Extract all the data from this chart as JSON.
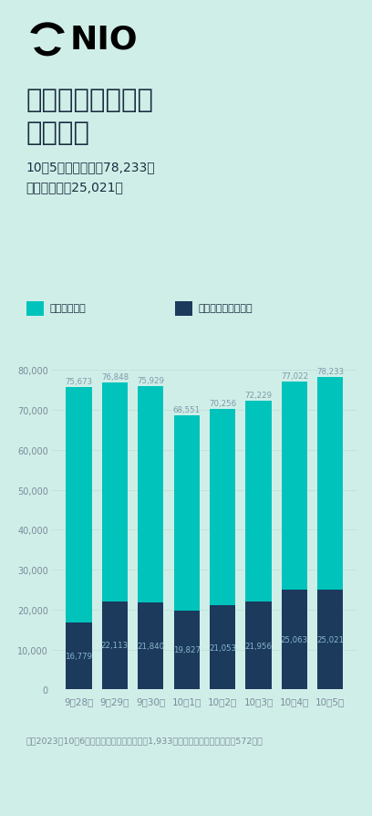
{
  "title_line1": "双节假期换电单量",
  "title_line2": "连创新高",
  "subtitle_line1": "10月5日单日换电达78,233次",
  "subtitle_line2": "其中高速换电25,021次",
  "legend_label1": "单日换电总数",
  "legend_label2": "单日高速站换电总数",
  "footer": "截至2023年10月6日，蔚来在全国已累计布局1,933座换电站（高速公路换电站572座）",
  "categories": [
    "9月28日",
    "9月29日",
    "9月30日",
    "10月1日",
    "10月2日",
    "10月3日",
    "10月4日",
    "10月5日"
  ],
  "total_values": [
    75673,
    76848,
    75929,
    68551,
    70256,
    72229,
    77022,
    78233
  ],
  "highway_values": [
    16779,
    22113,
    21840,
    19827,
    21053,
    21956,
    25063,
    25021
  ],
  "total_labels": [
    "75,673",
    "76,848",
    "75,929",
    "68,551",
    "70,256",
    "72,229",
    "77,022",
    "78,233"
  ],
  "highway_labels": [
    "16,779",
    "22,113",
    "21,840",
    "19,827",
    "21,053",
    "21,956",
    "25,063",
    "25,021"
  ],
  "bar_color_total": "#00C4BC",
  "bar_color_highway": "#1B3A5C",
  "background_color": "#D0EEE8",
  "text_color_dark": "#1a2e40",
  "text_color_gray": "#7a8a9a",
  "label_color_top": "#7a9aaa",
  "label_color_inner": "#8aaabb",
  "ylim": [
    0,
    88000
  ],
  "yticks": [
    0,
    10000,
    20000,
    30000,
    40000,
    50000,
    60000,
    70000,
    80000
  ],
  "ytick_labels": [
    "0",
    "10,000",
    "20,000",
    "30,000",
    "40,000",
    "50,000",
    "60,000",
    "70,000",
    "80,000"
  ]
}
